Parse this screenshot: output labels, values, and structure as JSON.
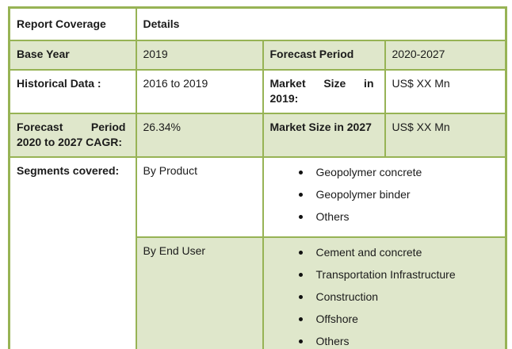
{
  "colors": {
    "border_green": "#97b355",
    "row_shade_green": "#dfe7cb",
    "text": "#1b1b1b",
    "bullet": "#111111"
  },
  "table": {
    "header": {
      "report_coverage": "Report Coverage",
      "details": "Details"
    },
    "rows": [
      {
        "label": "Base Year",
        "value": "2019",
        "label2": "Forecast Period",
        "value2": "2020-2027"
      },
      {
        "label": "Historical Data :",
        "value": "2016 to 2019",
        "label2": "Market Size in 2019:",
        "value2": "US$ XX Mn"
      },
      {
        "label": "Forecast Period 2020 to 2027 CAGR:",
        "value": "26.34%",
        "label2": "Market Size in 2027",
        "value2": "US$ XX Mn"
      }
    ],
    "segments": {
      "label": "Segments covered:",
      "groups": [
        {
          "name": "By Product",
          "items": [
            "Geopolymer concrete",
            "Geopolymer binder",
            "Others"
          ]
        },
        {
          "name": "By End User",
          "items": [
            "Cement and concrete",
            "Transportation Infrastructure",
            "Construction",
            "Offshore",
            "Others"
          ]
        }
      ]
    }
  }
}
